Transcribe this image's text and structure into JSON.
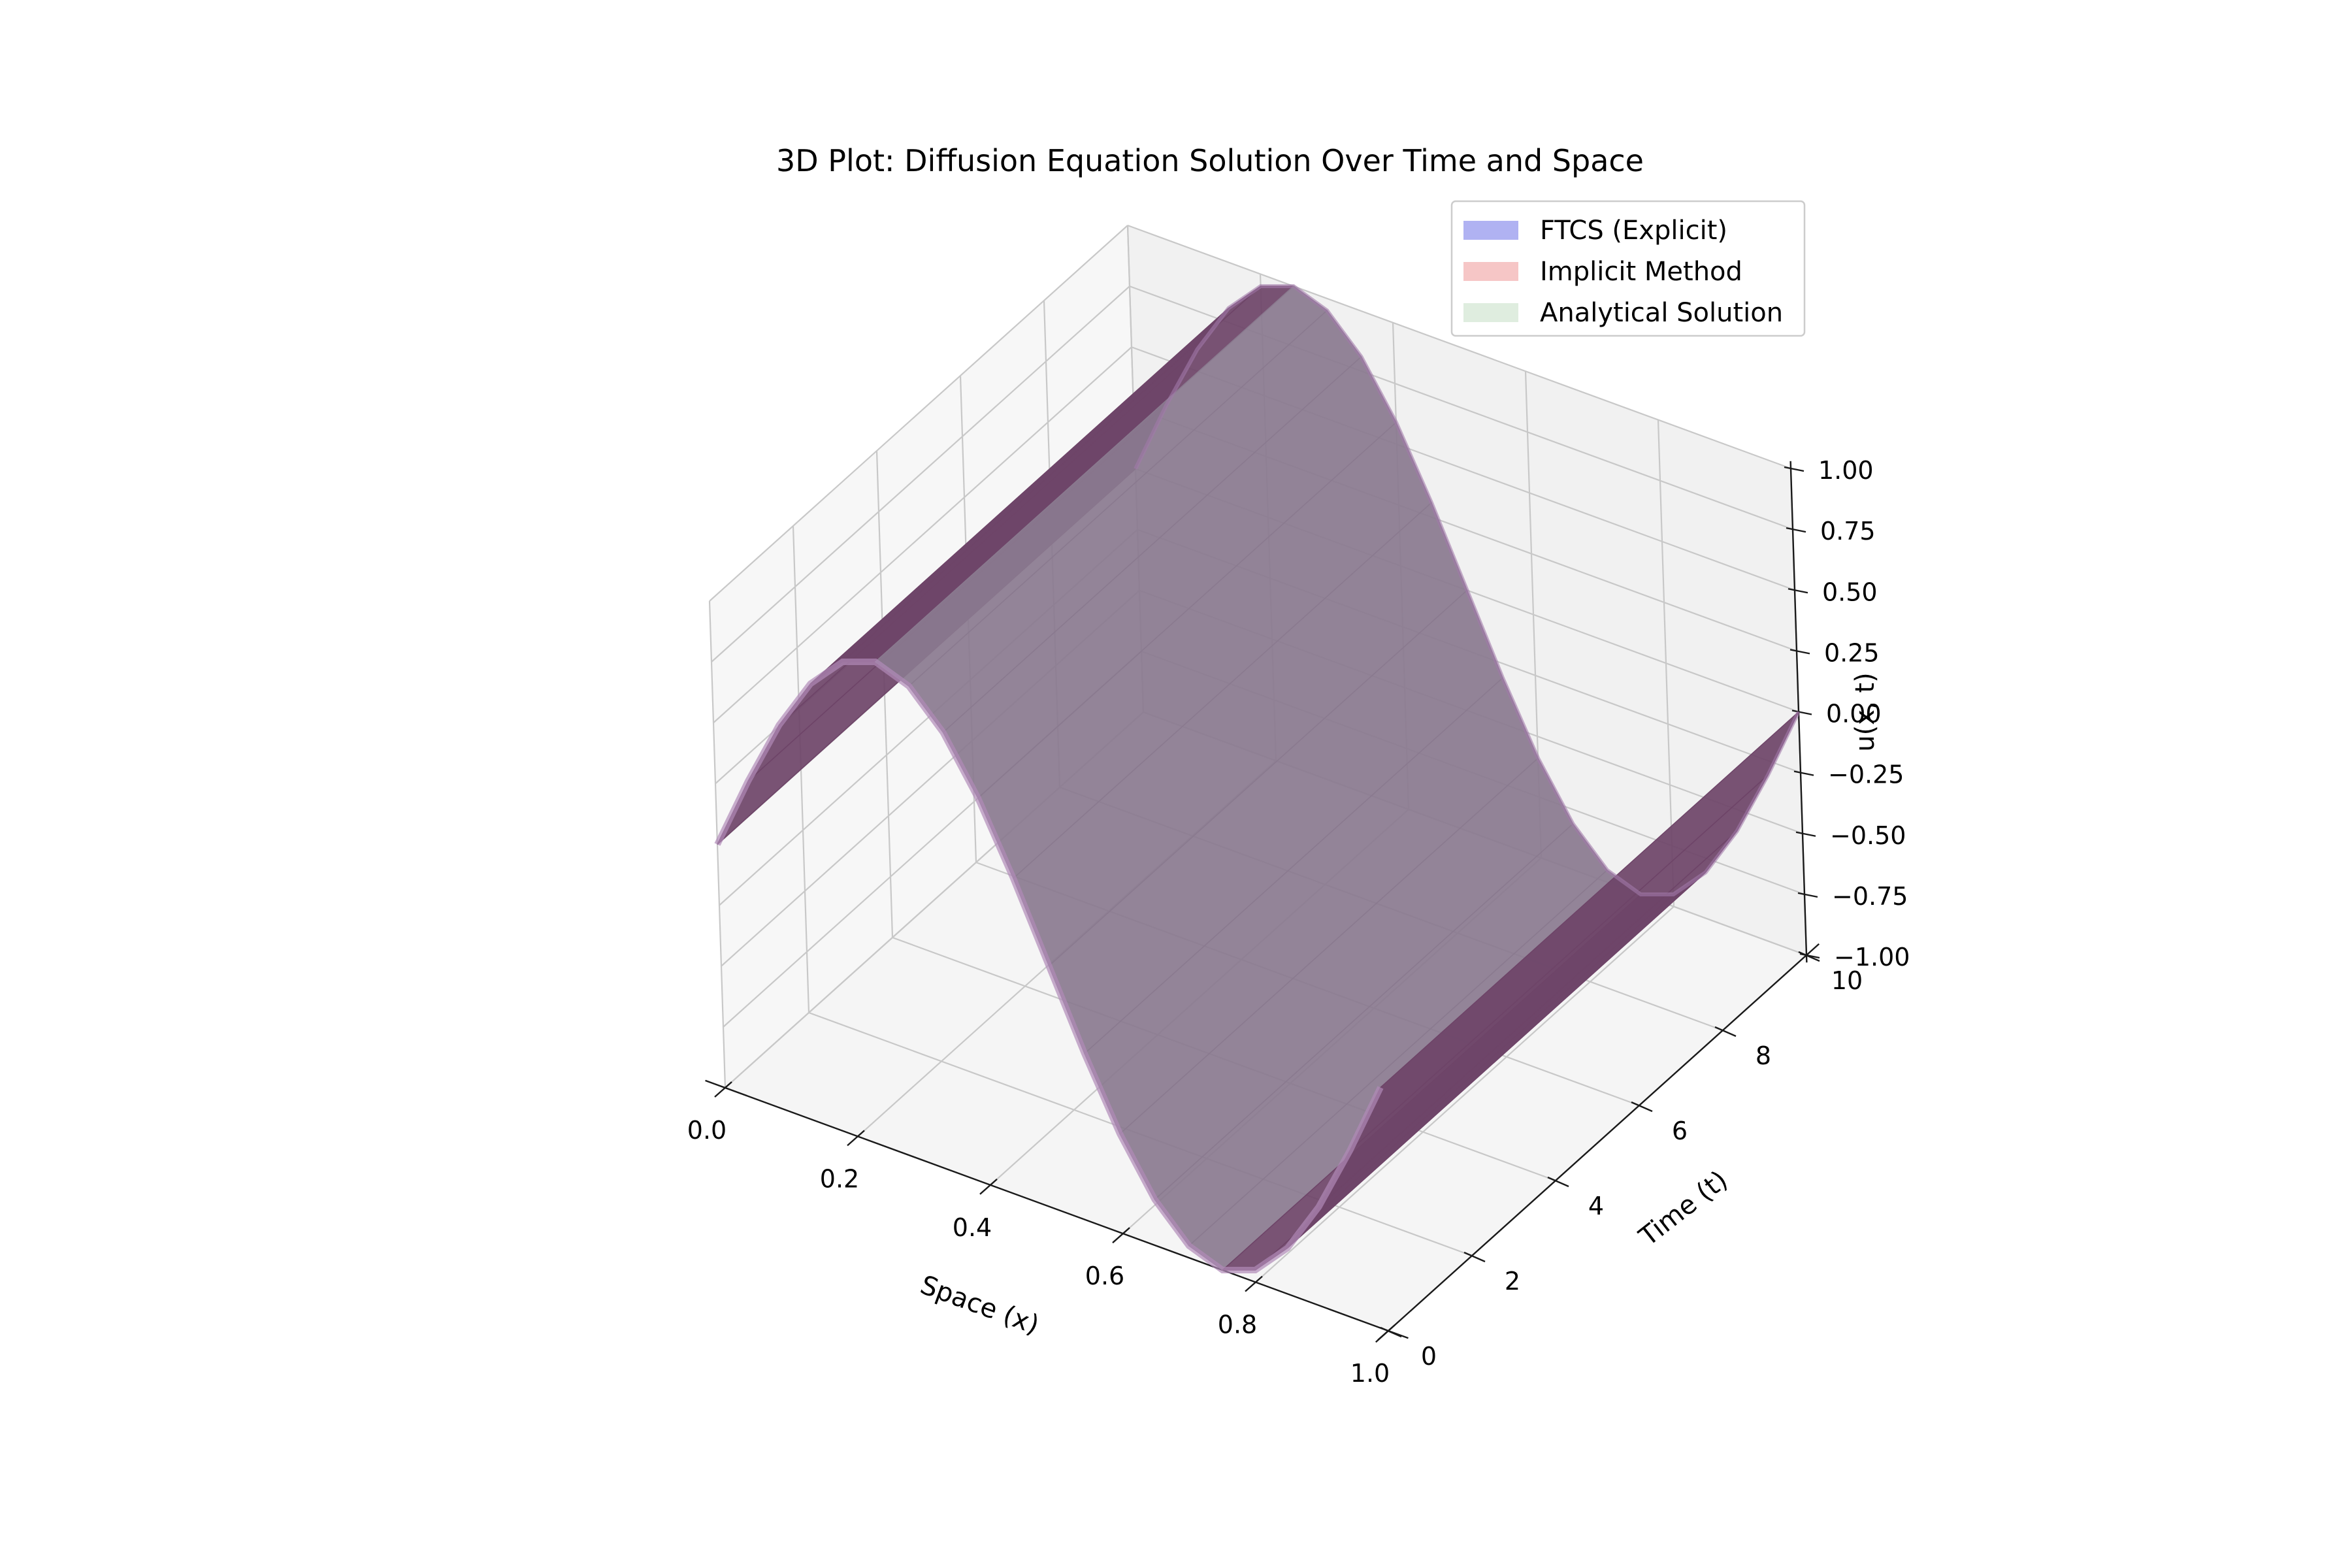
{
  "chart_data": {
    "type": "surface3d",
    "title": "3D Plot: Diffusion Equation Solution Over Time and Space",
    "xlabel": "Space (x)",
    "ylabel": "Time (t)",
    "zlabel": "u(x, t)",
    "xlim": [
      0,
      1
    ],
    "ylim": [
      0,
      10
    ],
    "zlim": [
      -1,
      1
    ],
    "xticks": [
      "0.0",
      "0.2",
      "0.4",
      "0.6",
      "0.8",
      "1.0"
    ],
    "yticks": [
      "0",
      "2",
      "4",
      "6",
      "8",
      "10"
    ],
    "zticks": [
      "1.00",
      "0.75",
      "0.50",
      "0.25",
      "0.00",
      "−0.25",
      "−0.50",
      "−0.75",
      "−1.00"
    ],
    "grid": true,
    "legend_position": "top-right",
    "x": [
      0.0,
      0.05,
      0.1,
      0.15,
      0.2,
      0.25,
      0.3,
      0.35,
      0.4,
      0.45,
      0.5,
      0.55,
      0.6,
      0.65,
      0.7,
      0.75,
      0.8,
      0.85,
      0.9,
      0.95,
      1.0
    ],
    "t": [
      0,
      10
    ],
    "series": [
      {
        "name": "FTCS (Explicit)",
        "color": "#b0b2f2",
        "u_at_t0": [
          0.0,
          0.31,
          0.59,
          0.81,
          0.95,
          1.0,
          0.95,
          0.81,
          0.59,
          0.31,
          0.0,
          -0.31,
          -0.59,
          -0.81,
          -0.95,
          -1.0,
          -0.95,
          -0.81,
          -0.59,
          -0.31,
          0.0
        ],
        "u_at_t10": [
          0.0,
          0.31,
          0.59,
          0.81,
          0.95,
          1.0,
          0.95,
          0.81,
          0.59,
          0.31,
          0.0,
          -0.31,
          -0.59,
          -0.81,
          -0.95,
          -1.0,
          -0.95,
          -0.81,
          -0.59,
          -0.31,
          0.0
        ]
      },
      {
        "name": "Implicit Method",
        "color": "#f6c6c6",
        "u_at_t0": [
          0.0,
          0.31,
          0.59,
          0.81,
          0.95,
          1.0,
          0.95,
          0.81,
          0.59,
          0.31,
          0.0,
          -0.31,
          -0.59,
          -0.81,
          -0.95,
          -1.0,
          -0.95,
          -0.81,
          -0.59,
          -0.31,
          0.0
        ],
        "u_at_t10": [
          0.0,
          0.31,
          0.59,
          0.81,
          0.95,
          1.0,
          0.95,
          0.81,
          0.59,
          0.31,
          0.0,
          -0.31,
          -0.59,
          -0.81,
          -0.95,
          -1.0,
          -0.95,
          -0.81,
          -0.59,
          -0.31,
          0.0
        ]
      },
      {
        "name": "Analytical Solution",
        "color": "#dfeddf",
        "u_at_t0": [
          0.0,
          0.31,
          0.59,
          0.81,
          0.95,
          1.0,
          0.95,
          0.81,
          0.59,
          0.31,
          0.0,
          -0.31,
          -0.59,
          -0.81,
          -0.95,
          -1.0,
          -0.95,
          -0.81,
          -0.59,
          -0.31,
          0.0
        ],
        "u_at_t10": [
          0.0,
          0.31,
          0.59,
          0.81,
          0.95,
          1.0,
          0.95,
          0.81,
          0.59,
          0.31,
          0.0,
          -0.31,
          -0.59,
          -0.81,
          -0.95,
          -1.0,
          -0.95,
          -0.81,
          -0.59,
          -0.31,
          0.0
        ]
      }
    ],
    "surface_color": "#6e4a72"
  }
}
